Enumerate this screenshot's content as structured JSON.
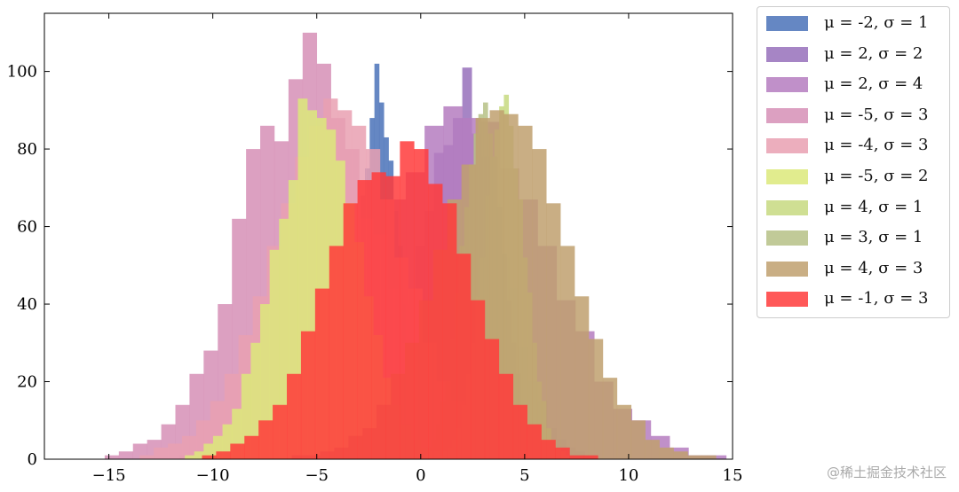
{
  "chart_data": {
    "type": "histogram",
    "xlim": [
      -18.1,
      15
    ],
    "ylim": [
      0,
      115
    ],
    "xticks": [
      -15,
      -10,
      -5,
      0,
      5,
      10,
      15
    ],
    "xtick_labels": [
      "−15",
      "−10",
      "−5",
      "0",
      "5",
      "10",
      "15"
    ],
    "yticks": [
      0,
      20,
      40,
      60,
      80,
      100
    ],
    "ytick_labels": [
      "0",
      "20",
      "40",
      "60",
      "80",
      "100"
    ],
    "grid": false,
    "legend_placement": "outside-right",
    "bins": 30,
    "series": [
      {
        "name": "μ = -2, σ = 1",
        "color": "#4a72b8",
        "range": [
          -5.4,
          1.4
        ],
        "counts": [
          1,
          0,
          2,
          4,
          5,
          8,
          15,
          20,
          30,
          44,
          52,
          68,
          75,
          88,
          102,
          92,
          83,
          77,
          64,
          55,
          40,
          30,
          22,
          13,
          9,
          5,
          3,
          2,
          1,
          1
        ]
      },
      {
        "name": "μ = 2, σ = 2",
        "color": "#9670bb",
        "range": [
          -4.8,
          8.8
        ],
        "counts": [
          0,
          1,
          2,
          3,
          6,
          9,
          13,
          22,
          30,
          40,
          55,
          64,
          79,
          81,
          88,
          101,
          84,
          78,
          66,
          52,
          44,
          29,
          20,
          15,
          8,
          5,
          3,
          2,
          1,
          0
        ]
      },
      {
        "name": "μ = 2, σ = 4",
        "color": "#b57dc0",
        "range": [
          -11.6,
          15.6
        ],
        "counts": [
          1,
          1,
          2,
          3,
          5,
          9,
          15,
          20,
          32,
          40,
          52,
          67,
          74,
          86,
          91,
          88,
          87,
          75,
          67,
          55,
          41,
          33,
          20,
          13,
          10,
          6,
          3,
          1,
          1,
          0
        ]
      },
      {
        "name": "μ = -5, σ = 3",
        "color": "#d68fb6",
        "range": [
          -15.2,
          5.2
        ],
        "counts": [
          1,
          2,
          4,
          5,
          9,
          14,
          22,
          28,
          40,
          62,
          80,
          86,
          82,
          98,
          110,
          102,
          88,
          80,
          62,
          58,
          44,
          30,
          21,
          13,
          8,
          5,
          3,
          2,
          1,
          0
        ]
      },
      {
        "name": "μ = -4, σ = 3",
        "color": "#e9a0b2",
        "range": [
          -14.2,
          6.2
        ],
        "counts": [
          0,
          1,
          3,
          4,
          6,
          10,
          15,
          22,
          32,
          42,
          55,
          66,
          78,
          86,
          93,
          90,
          86,
          80,
          67,
          52,
          44,
          30,
          20,
          15,
          10,
          5,
          3,
          2,
          1,
          1
        ]
      },
      {
        "name": "μ = -5, σ = 2",
        "color": "#dce97a",
        "range": [
          -11.8,
          1.8
        ],
        "counts": [
          0,
          1,
          2,
          4,
          6,
          9,
          13,
          22,
          30,
          40,
          54,
          62,
          72,
          93,
          90,
          88,
          85,
          77,
          66,
          56,
          42,
          32,
          21,
          14,
          9,
          5,
          3,
          2,
          1,
          0
        ]
      },
      {
        "name": "μ = 4, σ = 1",
        "color": "#c7d980",
        "range": [
          0.6,
          7.4
        ],
        "counts": [
          0,
          1,
          2,
          3,
          5,
          8,
          14,
          22,
          30,
          42,
          52,
          68,
          78,
          85,
          91,
          94,
          86,
          75,
          67,
          52,
          43,
          30,
          20,
          15,
          8,
          5,
          3,
          2,
          1,
          0
        ]
      },
      {
        "name": "μ = 3, σ = 1",
        "color": "#b6c186",
        "range": [
          -0.4,
          6.4
        ],
        "counts": [
          1,
          1,
          2,
          3,
          5,
          9,
          15,
          20,
          31,
          43,
          55,
          65,
          76,
          84,
          89,
          92,
          84,
          78,
          65,
          53,
          41,
          30,
          22,
          14,
          9,
          6,
          3,
          2,
          0,
          1
        ]
      },
      {
        "name": "μ = 4, σ = 3",
        "color": "#c0a06e",
        "range": [
          -6.2,
          14.2
        ],
        "counts": [
          1,
          1,
          2,
          3,
          6,
          8,
          14,
          22,
          30,
          41,
          54,
          67,
          76,
          88,
          90,
          89,
          86,
          80,
          66,
          55,
          42,
          31,
          21,
          14,
          10,
          5,
          3,
          2,
          1,
          1
        ]
      },
      {
        "name": "μ = -1, σ = 3",
        "color": "#ff3b3b",
        "range": [
          -11.2,
          9.2
        ],
        "counts": [
          0,
          1,
          2,
          4,
          6,
          10,
          14,
          22,
          33,
          44,
          55,
          66,
          72,
          74,
          73,
          82,
          80,
          71,
          66,
          53,
          41,
          31,
          22,
          14,
          9,
          5,
          3,
          1,
          1,
          0
        ]
      }
    ]
  },
  "watermark": "@稀土掘金技术社区"
}
